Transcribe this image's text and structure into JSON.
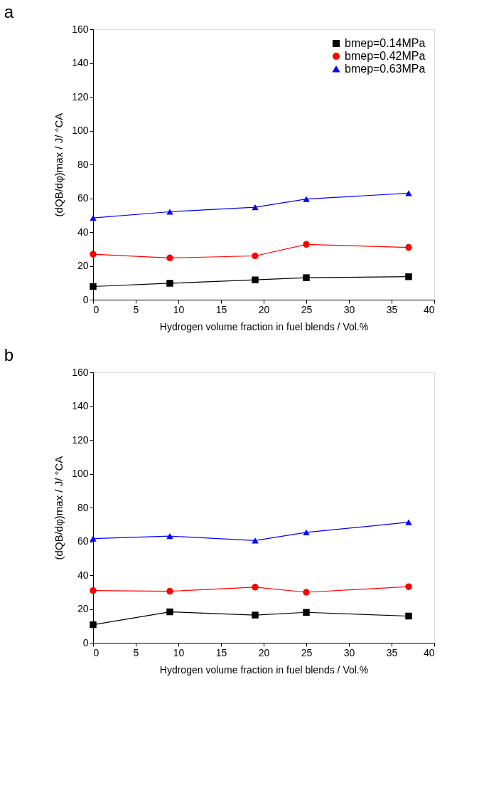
{
  "chart_data": [
    {
      "type": "line",
      "title": "a",
      "xlabel": "Hydrogen volume fraction in fuel blends / Vol.%",
      "ylabel": "(dQB/dφ)max / J/ °CA",
      "x": [
        0,
        9,
        19,
        25,
        37
      ],
      "xlim": [
        0,
        40
      ],
      "xticks": [
        0,
        5,
        10,
        15,
        20,
        25,
        30,
        35,
        40
      ],
      "ylim": [
        0,
        160
      ],
      "yticks": [
        0,
        20,
        40,
        60,
        80,
        100,
        120,
        140,
        160
      ],
      "grid": false,
      "legend": "top right",
      "line_style": "solid",
      "series": [
        {
          "name": "bmep=0.14MPa",
          "color": "#000000",
          "marker": "square",
          "values": [
            7.8,
            9.7,
            11.7,
            13.0,
            13.6
          ]
        },
        {
          "name": "bmep=0.42MPa",
          "color": "#ff0000",
          "marker": "circle",
          "values": [
            26.9,
            24.7,
            25.9,
            32.7,
            30.9
          ]
        },
        {
          "name": "bmep=0.63MPa",
          "color": "#0000ff",
          "marker": "triangle",
          "values": [
            48.4,
            52.0,
            54.7,
            59.5,
            63.0
          ]
        }
      ]
    },
    {
      "type": "line",
      "title": "b",
      "xlabel": "Hydrogen volume fraction in fuel blends / Vol.%",
      "ylabel": "(dQB/dφ)max / J/ °CA",
      "x": [
        0,
        9,
        19,
        25,
        37
      ],
      "xlim": [
        0,
        40
      ],
      "xticks": [
        0,
        5,
        10,
        15,
        20,
        25,
        30,
        35,
        40
      ],
      "ylim": [
        0,
        160
      ],
      "yticks": [
        0,
        20,
        40,
        60,
        80,
        100,
        120,
        140,
        160
      ],
      "grid": false,
      "legend": "top right",
      "line_style": "solid",
      "series": [
        {
          "name": "bmep=0.14MPa",
          "color": "#000000",
          "marker": "square",
          "values": [
            10.7,
            18.3,
            16.4,
            18.0,
            15.8
          ]
        },
        {
          "name": "bmep=0.42MPa",
          "color": "#ff0000",
          "marker": "circle",
          "values": [
            30.9,
            30.5,
            32.9,
            29.9,
            33.2
          ]
        },
        {
          "name": "bmep=0.63MPa",
          "color": "#0000ff",
          "marker": "triangle",
          "values": [
            61.6,
            63.1,
            60.5,
            65.3,
            71.3
          ]
        }
      ]
    }
  ]
}
